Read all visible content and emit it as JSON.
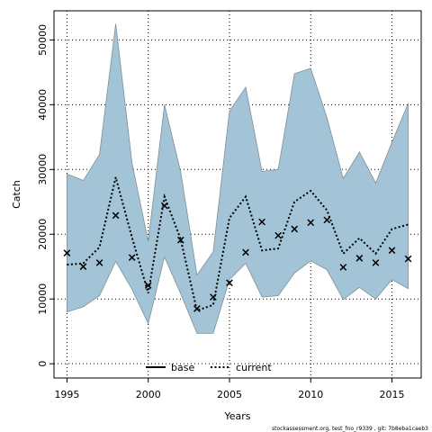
{
  "chart_data": {
    "type": "line",
    "xlabel": "Years",
    "ylabel": "Catch",
    "xlim": [
      1994.2,
      2016.8
    ],
    "ylim": [
      -2200,
      54500
    ],
    "x_ticks": [
      1995,
      2000,
      2005,
      2010,
      2015
    ],
    "y_ticks": [
      0,
      10000,
      20000,
      30000,
      40000,
      50000
    ],
    "grid": true,
    "legend_position": "bottom-center",
    "band_color": "#a3c4d6",
    "legend": [
      "base",
      "current"
    ],
    "series": [
      {
        "name": "base",
        "style": "crosses",
        "x": [
          1995,
          1996,
          1997,
          1998,
          1999,
          2000,
          2001,
          2002,
          2003,
          2004,
          2005,
          2006,
          2007,
          2008,
          2009,
          2010,
          2011,
          2012,
          2013,
          2014,
          2015,
          2016
        ],
        "values": [
          17100,
          15000,
          15600,
          22900,
          16400,
          12100,
          24400,
          19100,
          8500,
          10300,
          12500,
          17200,
          21900,
          19800,
          20800,
          21800,
          22200,
          14900,
          16300,
          15600,
          17500,
          16200
        ]
      },
      {
        "name": "current",
        "style": "dotted-line",
        "x": [
          1995,
          1996,
          1997,
          1998,
          1999,
          2000,
          2001,
          2002,
          2003,
          2004,
          2005,
          2006,
          2007,
          2008,
          2009,
          2010,
          2011,
          2012,
          2013,
          2014,
          2015,
          2016
        ],
        "values": [
          15300,
          15500,
          18000,
          28800,
          19500,
          10900,
          25800,
          19200,
          8200,
          9100,
          22500,
          25800,
          17500,
          17800,
          25000,
          26700,
          23700,
          17000,
          19400,
          17000,
          20800,
          21500
        ],
        "lower": [
          8000,
          8800,
          10500,
          15800,
          11500,
          6200,
          16500,
          10800,
          4700,
          4700,
          13000,
          15500,
          10300,
          10500,
          14000,
          15900,
          14500,
          9900,
          11800,
          10000,
          13000,
          11600
        ],
        "upper": [
          29300,
          28300,
          32300,
          52500,
          31000,
          18900,
          40000,
          29600,
          13700,
          17300,
          39000,
          42700,
          29700,
          30000,
          44800,
          45600,
          38000,
          28600,
          32700,
          27900,
          34200,
          40200
        ]
      }
    ],
    "footer": "stockassessment.org, test_fno_r9339 , git: 7b8eba1caeb3"
  }
}
